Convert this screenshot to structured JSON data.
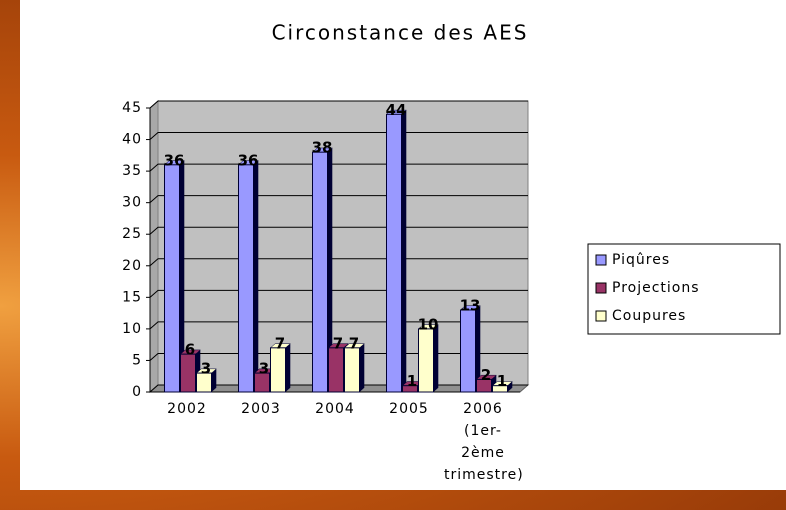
{
  "chart_data": {
    "type": "bar",
    "title": "Circonstance des AES",
    "categories": [
      "2002",
      "2003",
      "2004",
      "2005",
      "2006 (1er-2ème trimestre)"
    ],
    "series": [
      {
        "name": "Piqûres",
        "color": "#9999ff",
        "values": [
          36,
          36,
          38,
          44,
          13
        ]
      },
      {
        "name": "Projections",
        "color": "#993366",
        "values": [
          6,
          3,
          7,
          1,
          2
        ]
      },
      {
        "name": "Coupures",
        "color": "#ffffcc",
        "values": [
          3,
          7,
          7,
          10,
          1
        ]
      }
    ],
    "ylim": [
      0,
      45
    ],
    "yticks": [
      0,
      5,
      10,
      15,
      20,
      25,
      30,
      35,
      40,
      45
    ],
    "grid": true,
    "legend": "right"
  }
}
